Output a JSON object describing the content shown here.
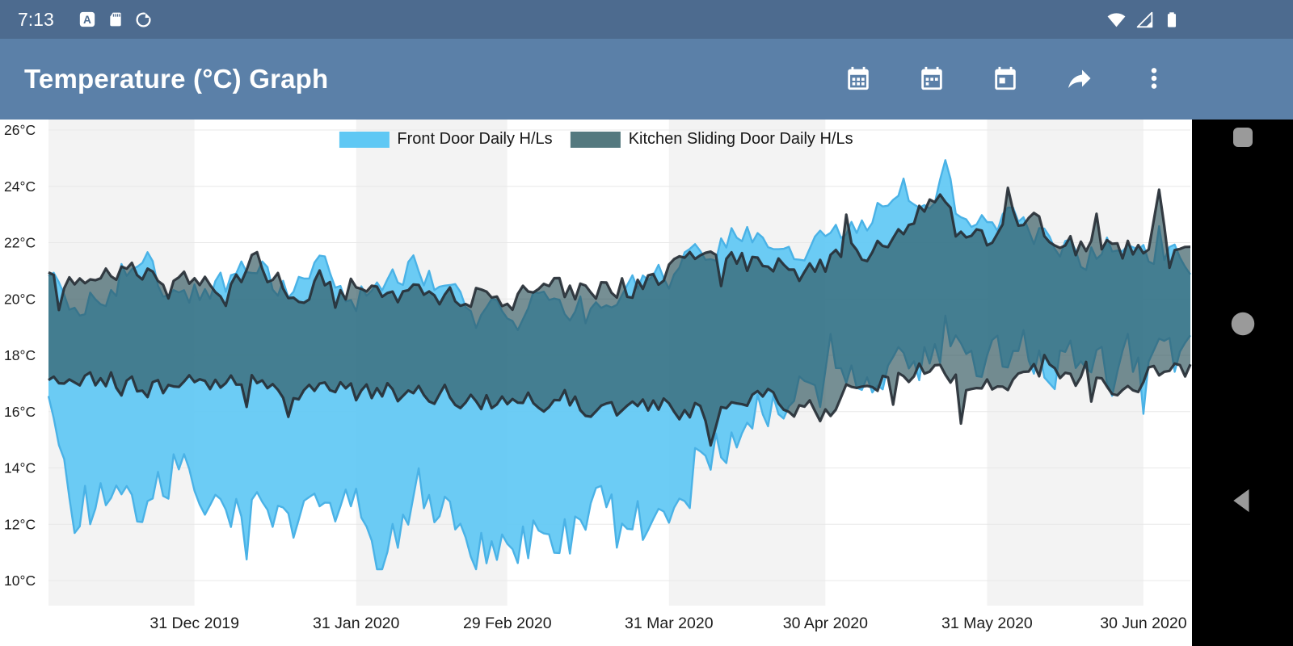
{
  "status_bar": {
    "time": "7:13",
    "left_icons": [
      "a-app-badge-icon",
      "sd-card-icon",
      "data-saver-icon"
    ],
    "right_icons": [
      "wifi-icon",
      "cell-signal-icon",
      "battery-icon"
    ],
    "background": "#4d6b8f"
  },
  "app_bar": {
    "title": "Temperature (°C) Graph",
    "action_icons": [
      "calendar-month-icon",
      "calendar-week-icon",
      "calendar-day-icon",
      "share-icon",
      "overflow-menu-icon"
    ],
    "background": "#5b80a8"
  },
  "nav_bar": {
    "icons": [
      "recents-icon",
      "home-icon",
      "back-icon"
    ],
    "background": "#000000",
    "icon_color": "#9a9a9a"
  },
  "chart_data": {
    "type": "area",
    "subtype": "daily-high-low-range-bands",
    "legend_position": "top-center",
    "grid": true,
    "seed": 11,
    "total_days": 219,
    "ylim": [
      9.1,
      26.4
    ],
    "plot_bands": [
      "#f3f3f3",
      "#ffffff"
    ],
    "y_ticks": [
      {
        "value": 26,
        "label": "26°C"
      },
      {
        "value": 24,
        "label": "24°C"
      },
      {
        "value": 22,
        "label": "22°C"
      },
      {
        "value": 20,
        "label": "20°C"
      },
      {
        "value": 18,
        "label": "18°C"
      },
      {
        "value": 16,
        "label": "16°C"
      },
      {
        "value": 14,
        "label": "14°C"
      },
      {
        "value": 12,
        "label": "12°C"
      },
      {
        "value": 10,
        "label": "10°C"
      }
    ],
    "x_ticks": [
      {
        "day": 28,
        "label": "31 Dec 2019"
      },
      {
        "day": 59,
        "label": "31 Jan 2020"
      },
      {
        "day": 88,
        "label": "29 Feb 2020"
      },
      {
        "day": 119,
        "label": "31 Mar 2020"
      },
      {
        "day": 149,
        "label": "30 Apr 2020"
      },
      {
        "day": 180,
        "label": "31 May 2020"
      },
      {
        "day": 210,
        "label": "30 Jun 2020"
      }
    ],
    "series": [
      {
        "name": "Front Door Daily H/Ls",
        "legend_color": "#5fc8f4",
        "fill": "#5fc8f4",
        "fill_opacity": 0.92,
        "stroke": "#4ab2e6",
        "stroke_opacity": 1,
        "stroke_width": 2.4,
        "noise_high": 0.75,
        "noise_low": 1.3,
        "max": 25.0,
        "min": 10.4,
        "anchors": [
          [
            0,
            20.8,
            16.5
          ],
          [
            6,
            19.5,
            11.6
          ],
          [
            12,
            20.5,
            13.5
          ],
          [
            18,
            21.8,
            12.5
          ],
          [
            24,
            20.0,
            14.0
          ],
          [
            28,
            20.2,
            13.2
          ],
          [
            34,
            20.6,
            12.4
          ],
          [
            40,
            21.0,
            13.6
          ],
          [
            46,
            20.4,
            11.8
          ],
          [
            52,
            21.2,
            13.0
          ],
          [
            59,
            20.0,
            12.6
          ],
          [
            64,
            20.6,
            10.9
          ],
          [
            70,
            21.2,
            12.2
          ],
          [
            76,
            20.2,
            13.0
          ],
          [
            82,
            19.6,
            11.4
          ],
          [
            88,
            19.8,
            11.2
          ],
          [
            94,
            20.2,
            12.0
          ],
          [
            100,
            19.6,
            11.6
          ],
          [
            106,
            20.0,
            13.4
          ],
          [
            112,
            20.4,
            12.2
          ],
          [
            119,
            20.8,
            12.4
          ],
          [
            125,
            21.6,
            14.6
          ],
          [
            131,
            22.4,
            15.4
          ],
          [
            137,
            22.2,
            16.2
          ],
          [
            143,
            21.8,
            16.8
          ],
          [
            149,
            22.2,
            17.2
          ],
          [
            155,
            22.6,
            17.6
          ],
          [
            161,
            23.2,
            17.4
          ],
          [
            164,
            23.8,
            17.6
          ],
          [
            167,
            23.4,
            17.8
          ],
          [
            170,
            23.2,
            17.8
          ],
          [
            172,
            24.8,
            18.0
          ],
          [
            174,
            23.3,
            17.7
          ],
          [
            178,
            22.9,
            17.7
          ],
          [
            182,
            22.6,
            17.9
          ],
          [
            186,
            23.0,
            18.2
          ],
          [
            192,
            22.2,
            17.8
          ],
          [
            198,
            21.6,
            17.4
          ],
          [
            204,
            21.8,
            17.6
          ],
          [
            210,
            21.4,
            18.0
          ],
          [
            214,
            21.7,
            17.9
          ],
          [
            219,
            21.2,
            18.0
          ]
        ]
      },
      {
        "name": "Kitchen Sliding Door Daily H/Ls",
        "legend_color": "#54797f",
        "fill": "#2f555c",
        "fill_opacity": 0.66,
        "stroke": "#272f36",
        "stroke_opacity": 0.92,
        "stroke_width": 3.2,
        "noise_high": 0.7,
        "noise_low": 0.55,
        "max": 24.2,
        "min": 14.3,
        "anchors": [
          [
            0,
            20.8,
            17.2
          ],
          [
            6,
            20.2,
            16.9
          ],
          [
            12,
            20.6,
            17.1
          ],
          [
            18,
            21.0,
            16.8
          ],
          [
            24,
            20.4,
            17.0
          ],
          [
            28,
            20.6,
            17.2
          ],
          [
            34,
            20.2,
            16.9
          ],
          [
            40,
            21.6,
            17.0
          ],
          [
            46,
            20.2,
            16.7
          ],
          [
            52,
            20.6,
            16.9
          ],
          [
            59,
            20.4,
            16.6
          ],
          [
            64,
            20.2,
            16.8
          ],
          [
            70,
            20.4,
            16.6
          ],
          [
            76,
            20.0,
            16.7
          ],
          [
            82,
            20.2,
            16.4
          ],
          [
            88,
            20.0,
            16.3
          ],
          [
            94,
            20.4,
            16.5
          ],
          [
            100,
            20.2,
            16.4
          ],
          [
            106,
            20.6,
            16.1
          ],
          [
            112,
            20.4,
            15.9
          ],
          [
            119,
            21.0,
            16.2
          ],
          [
            123,
            21.8,
            15.8
          ],
          [
            125,
            21.6,
            16.3
          ],
          [
            127,
            22.2,
            14.5
          ],
          [
            129,
            21.3,
            16.4
          ],
          [
            133,
            21.3,
            16.5
          ],
          [
            137,
            21.2,
            16.6
          ],
          [
            143,
            21.0,
            16.2
          ],
          [
            149,
            21.2,
            15.9
          ],
          [
            155,
            21.6,
            17.0
          ],
          [
            161,
            22.2,
            17.2
          ],
          [
            167,
            23.0,
            17.4
          ],
          [
            171,
            23.2,
            17.2
          ],
          [
            174,
            22.4,
            17.0
          ],
          [
            175,
            22.6,
            15.4
          ],
          [
            176,
            22.2,
            16.9
          ],
          [
            180,
            22.2,
            17.2
          ],
          [
            182,
            22.0,
            17.1
          ],
          [
            184,
            23.8,
            17.0
          ],
          [
            186,
            22.4,
            17.4
          ],
          [
            190,
            22.7,
            17.5
          ],
          [
            194,
            22.4,
            17.3
          ],
          [
            198,
            21.8,
            17.2
          ],
          [
            204,
            21.6,
            17.0
          ],
          [
            208,
            21.8,
            16.6
          ],
          [
            211,
            21.6,
            17.2
          ],
          [
            213,
            24.1,
            17.5
          ],
          [
            215,
            21.5,
            17.3
          ],
          [
            219,
            21.3,
            17.4
          ]
        ]
      }
    ]
  }
}
